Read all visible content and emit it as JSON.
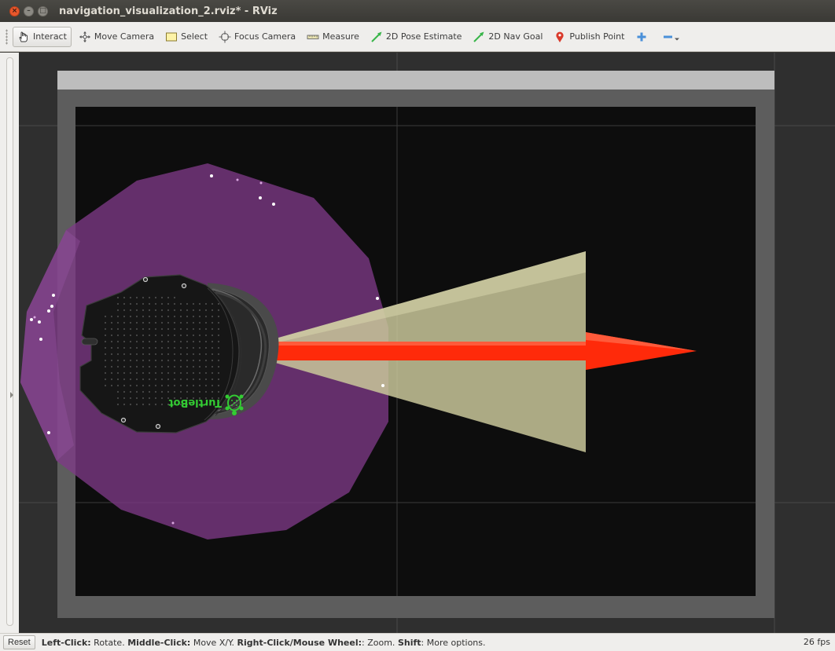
{
  "window": {
    "title": "navigation_visualization_2.rviz* - RViz",
    "close_glyph": "×",
    "minimize_glyph": "–",
    "maximize_glyph": "□"
  },
  "toolbar": {
    "tools": [
      {
        "id": "interact",
        "label": "Interact",
        "icon": "hand-pointer-icon",
        "active": true
      },
      {
        "id": "move-camera",
        "label": "Move Camera",
        "icon": "move-arrows-icon",
        "active": false
      },
      {
        "id": "select",
        "label": "Select",
        "icon": "select-rectangle-icon",
        "active": false
      },
      {
        "id": "focus-camera",
        "label": "Focus Camera",
        "icon": "crosshair-icon",
        "active": false
      },
      {
        "id": "measure",
        "label": "Measure",
        "icon": "ruler-icon",
        "active": false
      },
      {
        "id": "2d-pose-estimate",
        "label": "2D Pose Estimate",
        "icon": "green-arrow-icon",
        "active": false
      },
      {
        "id": "2d-nav-goal",
        "label": "2D Nav Goal",
        "icon": "green-arrow-icon",
        "active": false
      },
      {
        "id": "publish-point",
        "label": "Publish Point",
        "icon": "map-pin-icon",
        "active": false
      }
    ],
    "add_tool_icon": "plus-icon",
    "remove_tool_icon": "minus-icon"
  },
  "viewport": {
    "robot_logo_text": "TurtleBot",
    "colors": {
      "background": "#2f2f2f",
      "map_border": "#5d5d5d",
      "map_interior": "#0d0d0d",
      "costmap": "#7d3a86",
      "fov_cone": "#c9c79a",
      "goal_arrow": "#ff2a0a",
      "laser_points": "#ffffff",
      "turtlebot_logo": "#33cc33"
    }
  },
  "statusbar": {
    "reset_label": "Reset",
    "hints": [
      {
        "key": "Left-Click:",
        "text": " Rotate. "
      },
      {
        "key": "Middle-Click:",
        "text": " Move X/Y. "
      },
      {
        "key": "Right-Click/Mouse Wheel:",
        "text": ": Zoom. "
      },
      {
        "key": "Shift",
        "text": ": More options."
      }
    ],
    "fps": "26 fps"
  }
}
